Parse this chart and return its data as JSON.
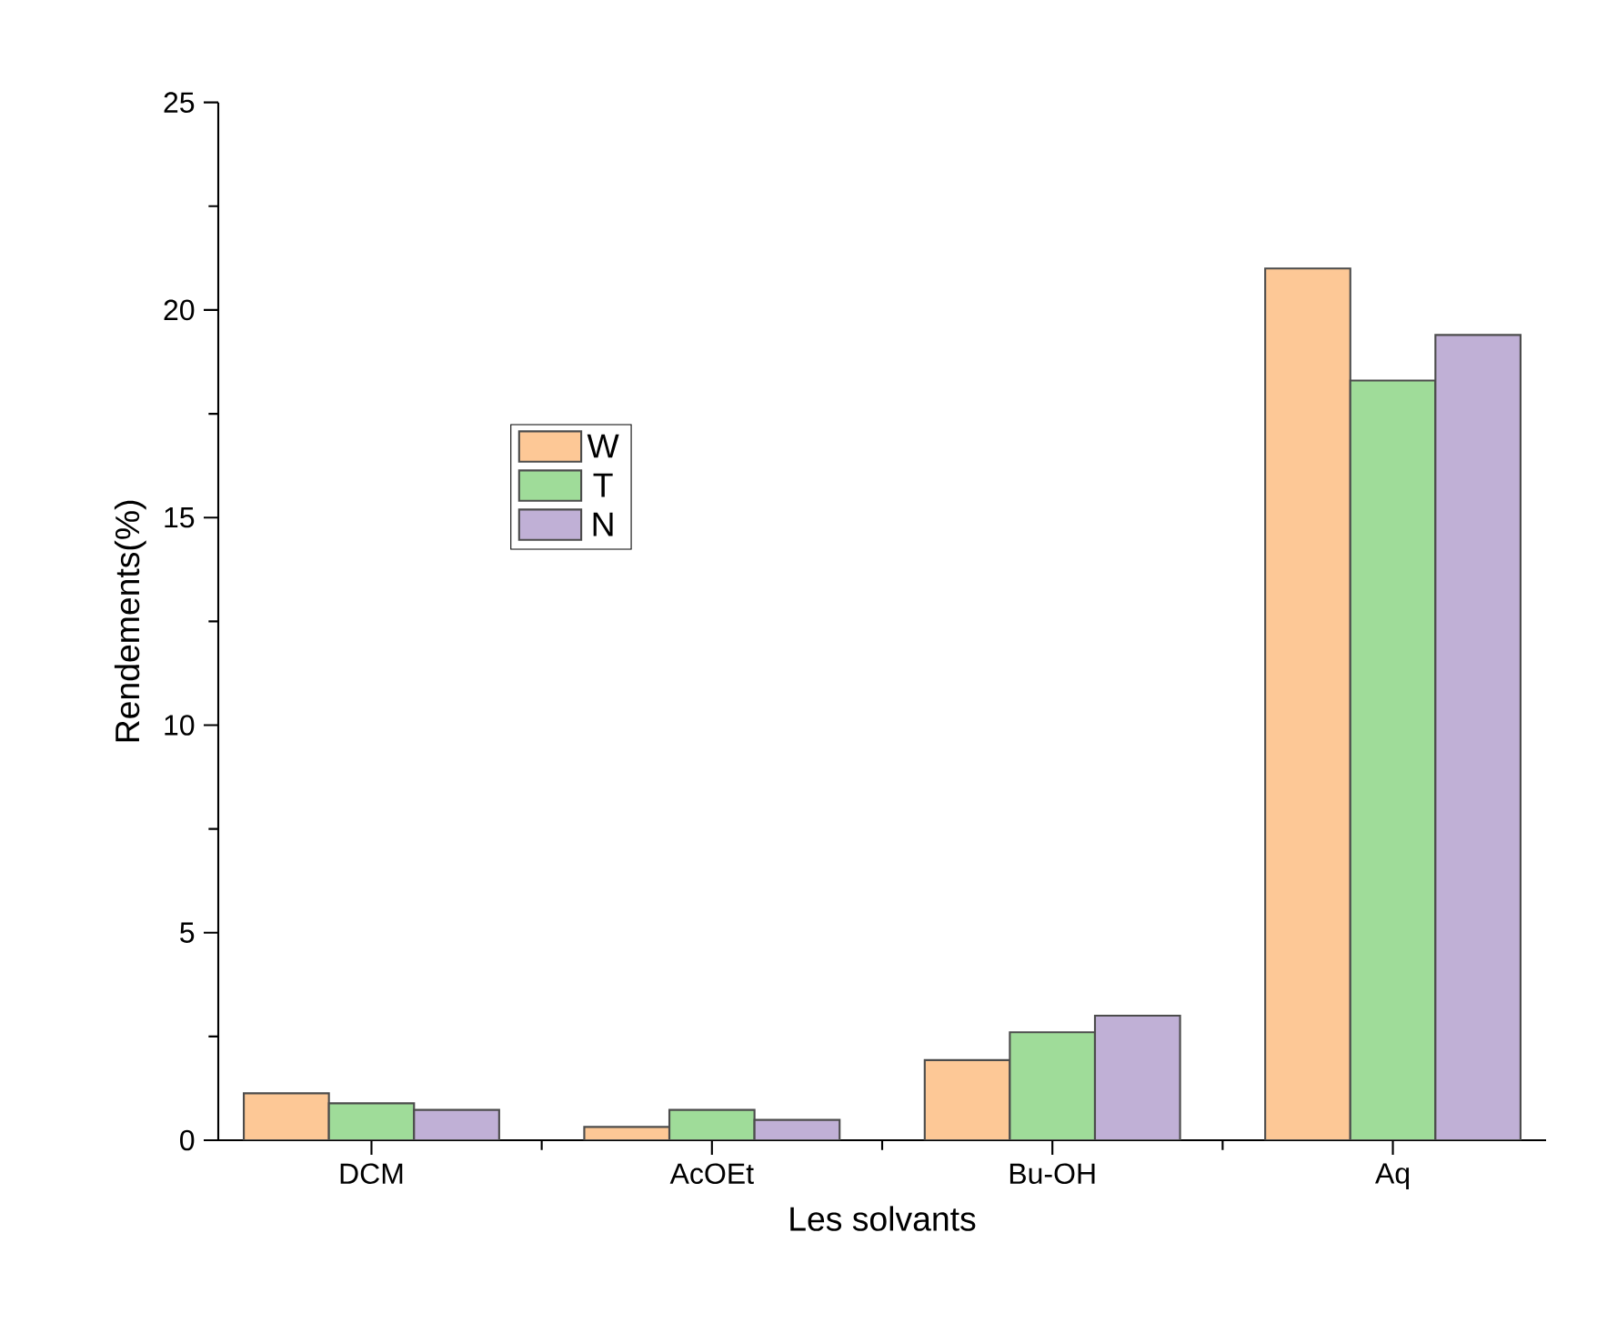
{
  "chart_data": {
    "type": "bar",
    "xlabel": "Les solvants",
    "ylabel": "Rendements(%)",
    "categories": [
      "DCM",
      "AcOEt",
      "Bu-OH",
      "Aq"
    ],
    "series": [
      {
        "name": "W",
        "color": "#fdc896",
        "values": [
          1.13,
          0.32,
          1.93,
          21.0
        ]
      },
      {
        "name": "T",
        "color": "#9fdc99",
        "values": [
          0.89,
          0.73,
          2.6,
          18.3
        ]
      },
      {
        "name": "N",
        "color": "#c0b0d6",
        "values": [
          0.73,
          0.49,
          3.0,
          19.4
        ]
      }
    ],
    "ylim": [
      0,
      25
    ],
    "yticks": [
      0,
      5,
      10,
      15,
      20,
      25
    ],
    "grid": false,
    "legend": "left"
  }
}
